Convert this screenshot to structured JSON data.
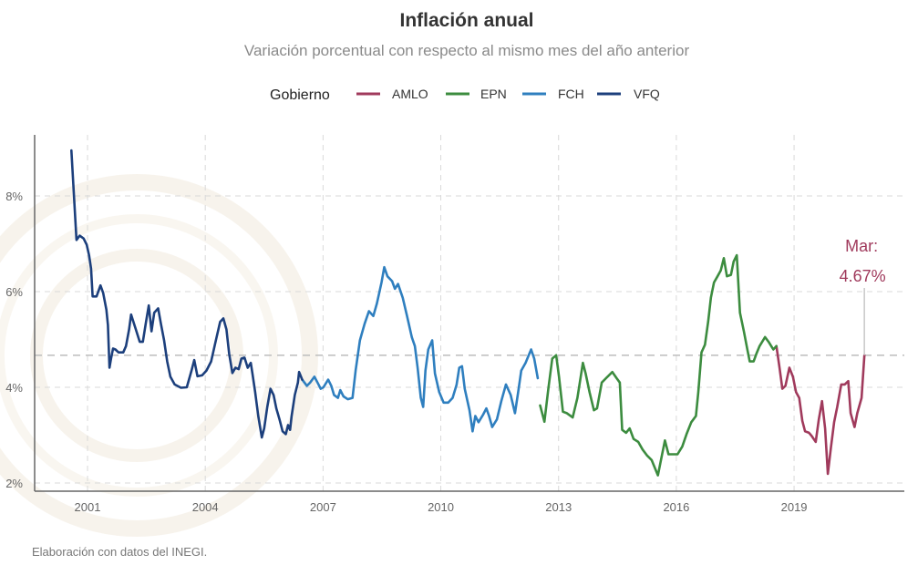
{
  "chart_data": {
    "type": "line",
    "title": "Inflación anual",
    "subtitle": "Variación porcentual con respecto al mismo mes del año anterior",
    "legend_title": "Gobierno",
    "legend_placement": "top",
    "xlabel": "",
    "ylabel": "",
    "x_ticks": [
      2001,
      2004,
      2007,
      2010,
      2013,
      2016,
      2019
    ],
    "x_tick_labels": [
      "2001",
      "2004",
      "2007",
      "2010",
      "2013",
      "2016",
      "2019"
    ],
    "y_ticks": [
      2,
      4,
      6,
      8
    ],
    "y_tick_labels": [
      "2%",
      "4%",
      "6%",
      "8%"
    ],
    "ylim": [
      1.8,
      9.2
    ],
    "grid": true,
    "reference_line": 4.67,
    "annotation": {
      "line1": "Mar:",
      "line2": "4.67%"
    },
    "caption": "Elaboración con datos del INEGI.",
    "series": [
      {
        "name": "AMLO",
        "color": "#a03a5c",
        "points": [
          [
            2018.55,
            4.86
          ],
          [
            2018.63,
            4.41
          ],
          [
            2018.7,
            3.97
          ],
          [
            2018.78,
            4.03
          ],
          [
            2018.88,
            4.41
          ],
          [
            2018.97,
            4.22
          ],
          [
            2019.05,
            3.9
          ],
          [
            2019.13,
            3.78
          ],
          [
            2019.21,
            3.3
          ],
          [
            2019.28,
            3.08
          ],
          [
            2019.38,
            3.05
          ],
          [
            2019.45,
            2.98
          ],
          [
            2019.55,
            2.86
          ],
          [
            2019.63,
            3.33
          ],
          [
            2019.71,
            3.71
          ],
          [
            2019.79,
            3.14
          ],
          [
            2019.86,
            2.19
          ],
          [
            2019.94,
            2.76
          ],
          [
            2020.02,
            3.27
          ],
          [
            2020.1,
            3.59
          ],
          [
            2020.2,
            4.06
          ],
          [
            2020.29,
            4.06
          ],
          [
            2020.38,
            4.13
          ],
          [
            2020.44,
            3.46
          ],
          [
            2020.54,
            3.17
          ],
          [
            2020.61,
            3.46
          ],
          [
            2020.72,
            3.78
          ],
          [
            2020.79,
            4.67
          ]
        ]
      },
      {
        "name": "EPN",
        "color": "#3c8c3f",
        "points": [
          [
            2012.53,
            3.62
          ],
          [
            2012.64,
            3.28
          ],
          [
            2012.74,
            3.97
          ],
          [
            2012.84,
            4.6
          ],
          [
            2012.94,
            4.67
          ],
          [
            2013.01,
            4.22
          ],
          [
            2013.11,
            3.49
          ],
          [
            2013.21,
            3.46
          ],
          [
            2013.36,
            3.37
          ],
          [
            2013.48,
            3.78
          ],
          [
            2013.62,
            4.51
          ],
          [
            2013.69,
            4.29
          ],
          [
            2013.79,
            3.9
          ],
          [
            2013.9,
            3.52
          ],
          [
            2013.98,
            3.56
          ],
          [
            2014.1,
            4.1
          ],
          [
            2014.21,
            4.19
          ],
          [
            2014.37,
            4.32
          ],
          [
            2014.48,
            4.19
          ],
          [
            2014.56,
            4.1
          ],
          [
            2014.62,
            3.11
          ],
          [
            2014.72,
            3.05
          ],
          [
            2014.81,
            3.14
          ],
          [
            2014.91,
            2.92
          ],
          [
            2015.03,
            2.86
          ],
          [
            2015.14,
            2.7
          ],
          [
            2015.26,
            2.57
          ],
          [
            2015.37,
            2.48
          ],
          [
            2015.53,
            2.16
          ],
          [
            2015.63,
            2.57
          ],
          [
            2015.71,
            2.89
          ],
          [
            2015.8,
            2.6
          ],
          [
            2015.92,
            2.6
          ],
          [
            2016.03,
            2.6
          ],
          [
            2016.15,
            2.76
          ],
          [
            2016.26,
            3.02
          ],
          [
            2016.38,
            3.27
          ],
          [
            2016.5,
            3.4
          ],
          [
            2016.56,
            3.9
          ],
          [
            2016.64,
            4.73
          ],
          [
            2016.73,
            4.89
          ],
          [
            2016.81,
            5.37
          ],
          [
            2016.88,
            5.87
          ],
          [
            2016.96,
            6.19
          ],
          [
            2017.05,
            6.32
          ],
          [
            2017.13,
            6.44
          ],
          [
            2017.21,
            6.7
          ],
          [
            2017.29,
            6.32
          ],
          [
            2017.39,
            6.35
          ],
          [
            2017.46,
            6.63
          ],
          [
            2017.54,
            6.76
          ],
          [
            2017.62,
            5.56
          ],
          [
            2017.72,
            5.17
          ],
          [
            2017.81,
            4.79
          ],
          [
            2017.87,
            4.54
          ],
          [
            2017.97,
            4.54
          ],
          [
            2018.04,
            4.7
          ],
          [
            2018.12,
            4.86
          ],
          [
            2018.26,
            5.05
          ],
          [
            2018.35,
            4.95
          ],
          [
            2018.47,
            4.79
          ],
          [
            2018.55,
            4.86
          ]
        ]
      },
      {
        "name": "FCH",
        "color": "#2f7fbf",
        "points": [
          [
            2006.47,
            4.16
          ],
          [
            2006.59,
            4.03
          ],
          [
            2006.67,
            4.1
          ],
          [
            2006.78,
            4.22
          ],
          [
            2006.86,
            4.1
          ],
          [
            2006.94,
            3.97
          ],
          [
            2007.01,
            4.0
          ],
          [
            2007.13,
            4.16
          ],
          [
            2007.21,
            4.03
          ],
          [
            2007.28,
            3.84
          ],
          [
            2007.38,
            3.78
          ],
          [
            2007.44,
            3.94
          ],
          [
            2007.52,
            3.81
          ],
          [
            2007.63,
            3.75
          ],
          [
            2007.75,
            3.78
          ],
          [
            2007.83,
            4.35
          ],
          [
            2007.94,
            4.98
          ],
          [
            2008.06,
            5.33
          ],
          [
            2008.17,
            5.59
          ],
          [
            2008.28,
            5.49
          ],
          [
            2008.37,
            5.75
          ],
          [
            2008.49,
            6.19
          ],
          [
            2008.56,
            6.51
          ],
          [
            2008.64,
            6.32
          ],
          [
            2008.76,
            6.22
          ],
          [
            2008.83,
            6.06
          ],
          [
            2008.91,
            6.16
          ],
          [
            2009.03,
            5.87
          ],
          [
            2009.14,
            5.49
          ],
          [
            2009.26,
            5.05
          ],
          [
            2009.34,
            4.86
          ],
          [
            2009.41,
            4.41
          ],
          [
            2009.49,
            3.78
          ],
          [
            2009.55,
            3.59
          ],
          [
            2009.61,
            4.35
          ],
          [
            2009.68,
            4.79
          ],
          [
            2009.78,
            4.98
          ],
          [
            2009.85,
            4.29
          ],
          [
            2009.96,
            3.9
          ],
          [
            2010.07,
            3.68
          ],
          [
            2010.19,
            3.68
          ],
          [
            2010.3,
            3.78
          ],
          [
            2010.4,
            4.05
          ],
          [
            2010.47,
            4.41
          ],
          [
            2010.54,
            4.44
          ],
          [
            2010.61,
            3.97
          ],
          [
            2010.73,
            3.52
          ],
          [
            2010.81,
            3.08
          ],
          [
            2010.88,
            3.4
          ],
          [
            2010.96,
            3.27
          ],
          [
            2011.08,
            3.43
          ],
          [
            2011.16,
            3.56
          ],
          [
            2011.23,
            3.4
          ],
          [
            2011.31,
            3.17
          ],
          [
            2011.43,
            3.33
          ],
          [
            2011.54,
            3.71
          ],
          [
            2011.66,
            4.06
          ],
          [
            2011.78,
            3.84
          ],
          [
            2011.89,
            3.46
          ],
          [
            2011.97,
            3.9
          ],
          [
            2012.05,
            4.35
          ],
          [
            2012.16,
            4.51
          ],
          [
            2012.3,
            4.79
          ],
          [
            2012.38,
            4.6
          ],
          [
            2012.47,
            4.19
          ]
        ]
      },
      {
        "name": "VFQ",
        "color": "#1c3f7c",
        "points": [
          [
            2000.59,
            8.95
          ],
          [
            2000.72,
            7.08
          ],
          [
            2000.8,
            7.17
          ],
          [
            2000.9,
            7.11
          ],
          [
            2000.98,
            6.98
          ],
          [
            2001.04,
            6.76
          ],
          [
            2001.09,
            6.48
          ],
          [
            2001.13,
            5.9
          ],
          [
            2001.23,
            5.9
          ],
          [
            2001.33,
            6.13
          ],
          [
            2001.4,
            5.97
          ],
          [
            2001.48,
            5.62
          ],
          [
            2001.52,
            5.3
          ],
          [
            2001.56,
            4.41
          ],
          [
            2001.6,
            4.6
          ],
          [
            2001.65,
            4.81
          ],
          [
            2001.71,
            4.79
          ],
          [
            2001.79,
            4.73
          ],
          [
            2001.91,
            4.73
          ],
          [
            2001.98,
            4.86
          ],
          [
            2002.06,
            5.21
          ],
          [
            2002.11,
            5.52
          ],
          [
            2002.22,
            5.24
          ],
          [
            2002.33,
            4.95
          ],
          [
            2002.41,
            4.95
          ],
          [
            2002.49,
            5.37
          ],
          [
            2002.56,
            5.71
          ],
          [
            2002.63,
            5.17
          ],
          [
            2002.7,
            5.56
          ],
          [
            2002.8,
            5.65
          ],
          [
            2002.87,
            5.33
          ],
          [
            2002.95,
            4.98
          ],
          [
            2003.03,
            4.54
          ],
          [
            2003.11,
            4.22
          ],
          [
            2003.22,
            4.06
          ],
          [
            2003.38,
            3.99
          ],
          [
            2003.53,
            4.0
          ],
          [
            2003.65,
            4.35
          ],
          [
            2003.72,
            4.57
          ],
          [
            2003.8,
            4.23
          ],
          [
            2003.92,
            4.25
          ],
          [
            2004.03,
            4.35
          ],
          [
            2004.15,
            4.54
          ],
          [
            2004.27,
            4.98
          ],
          [
            2004.38,
            5.37
          ],
          [
            2004.46,
            5.44
          ],
          [
            2004.54,
            5.21
          ],
          [
            2004.61,
            4.7
          ],
          [
            2004.69,
            4.3
          ],
          [
            2004.77,
            4.41
          ],
          [
            2004.85,
            4.38
          ],
          [
            2004.92,
            4.6
          ],
          [
            2005.0,
            4.62
          ],
          [
            2005.08,
            4.41
          ],
          [
            2005.16,
            4.51
          ],
          [
            2005.2,
            4.29
          ],
          [
            2005.27,
            3.9
          ],
          [
            2005.35,
            3.4
          ],
          [
            2005.44,
            2.95
          ],
          [
            2005.5,
            3.14
          ],
          [
            2005.58,
            3.59
          ],
          [
            2005.66,
            3.97
          ],
          [
            2005.74,
            3.84
          ],
          [
            2005.81,
            3.56
          ],
          [
            2005.89,
            3.33
          ],
          [
            2005.97,
            3.08
          ],
          [
            2006.05,
            3.02
          ],
          [
            2006.11,
            3.21
          ],
          [
            2006.16,
            3.11
          ],
          [
            2006.2,
            3.4
          ],
          [
            2006.28,
            3.84
          ],
          [
            2006.36,
            4.1
          ],
          [
            2006.39,
            4.32
          ],
          [
            2006.47,
            4.16
          ]
        ]
      }
    ]
  }
}
